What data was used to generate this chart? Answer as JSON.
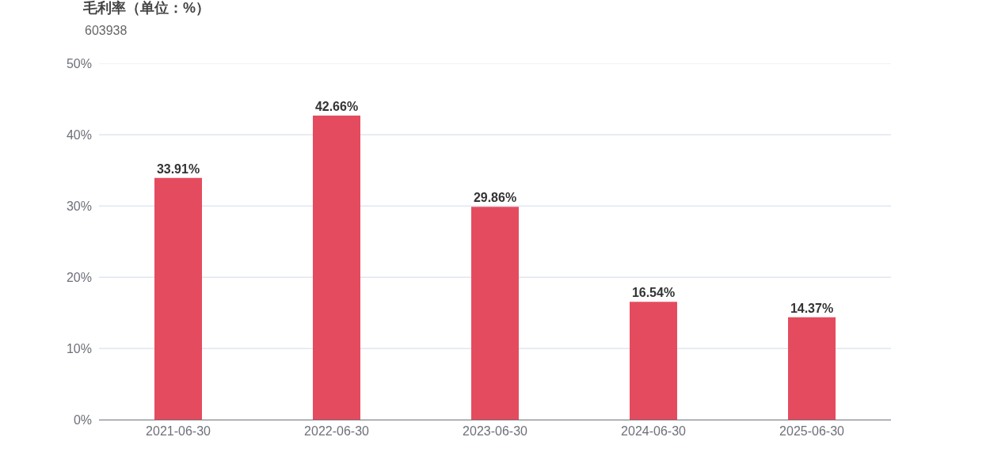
{
  "chart_data": {
    "type": "bar",
    "title": "毛利率（单位：%）",
    "subtitle": "603938",
    "categories": [
      "2021-06-30",
      "2022-06-30",
      "2023-06-30",
      "2024-06-30",
      "2025-06-30"
    ],
    "values": [
      33.91,
      42.66,
      29.86,
      16.54,
      14.37
    ],
    "value_labels": [
      "33.91%",
      "42.66%",
      "29.86%",
      "16.54%",
      "14.37%"
    ],
    "color": "#e54b5e",
    "ylim": [
      0,
      50
    ],
    "yticks": [
      {
        "value": 0,
        "label": "0%"
      },
      {
        "value": 10,
        "label": "10%"
      },
      {
        "value": 20,
        "label": "20%"
      },
      {
        "value": 30,
        "label": "30%"
      },
      {
        "value": 40,
        "label": "40%"
      },
      {
        "value": 50,
        "label": "50%"
      }
    ],
    "grid": "y"
  }
}
